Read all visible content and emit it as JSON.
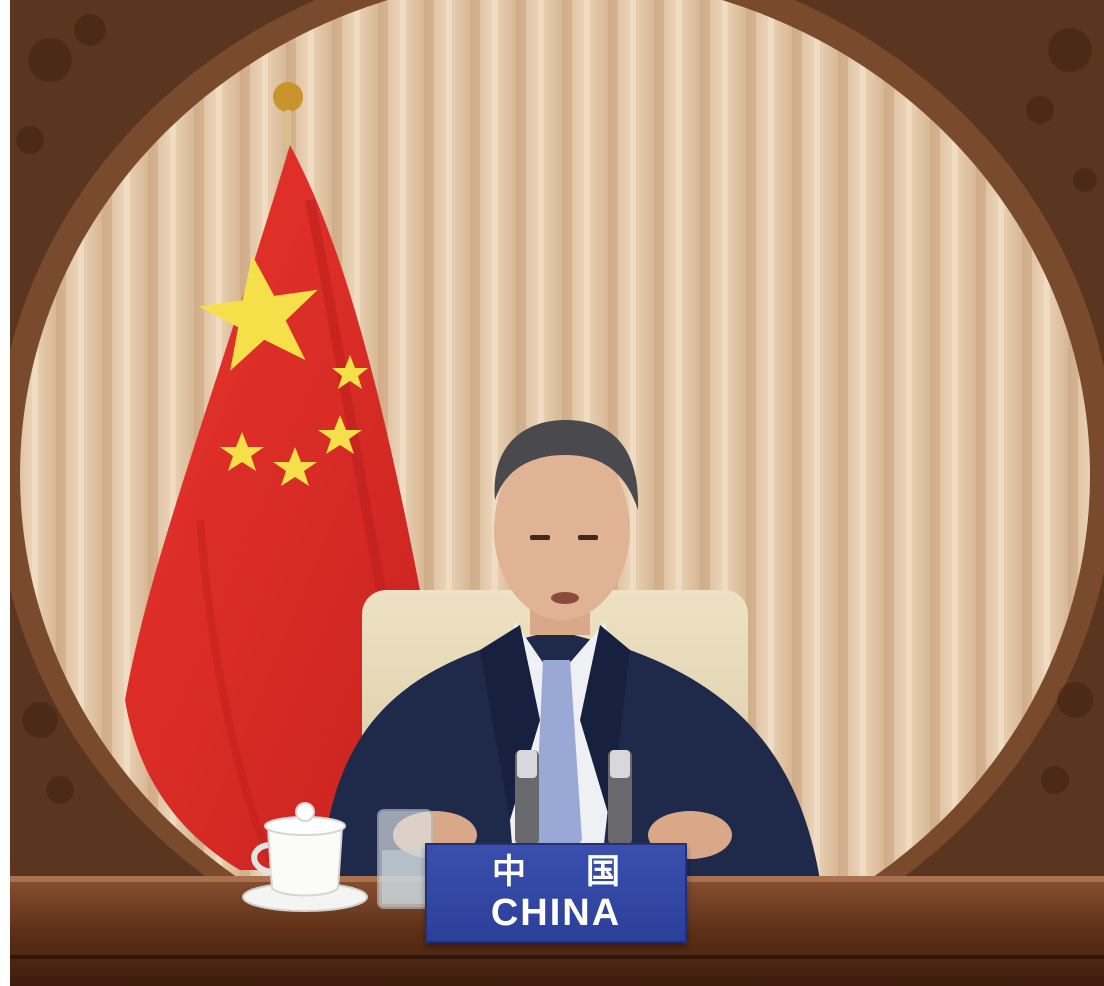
{
  "nameplate": {
    "chinese": "中国",
    "english": "CHINA"
  },
  "colors": {
    "curtain": "#e0c6a8",
    "wood_frame": "#7a4a2c",
    "flag_red": "#e0312b",
    "flag_star": "#f7e34a",
    "suit": "#1f2a4a",
    "tie": "#9aa8d6",
    "nameplate_blue": "#2f43a0",
    "table": "#6a3a20"
  },
  "icons": [
    "chinese-flag",
    "tea-cup",
    "microphone",
    "water-glass"
  ]
}
